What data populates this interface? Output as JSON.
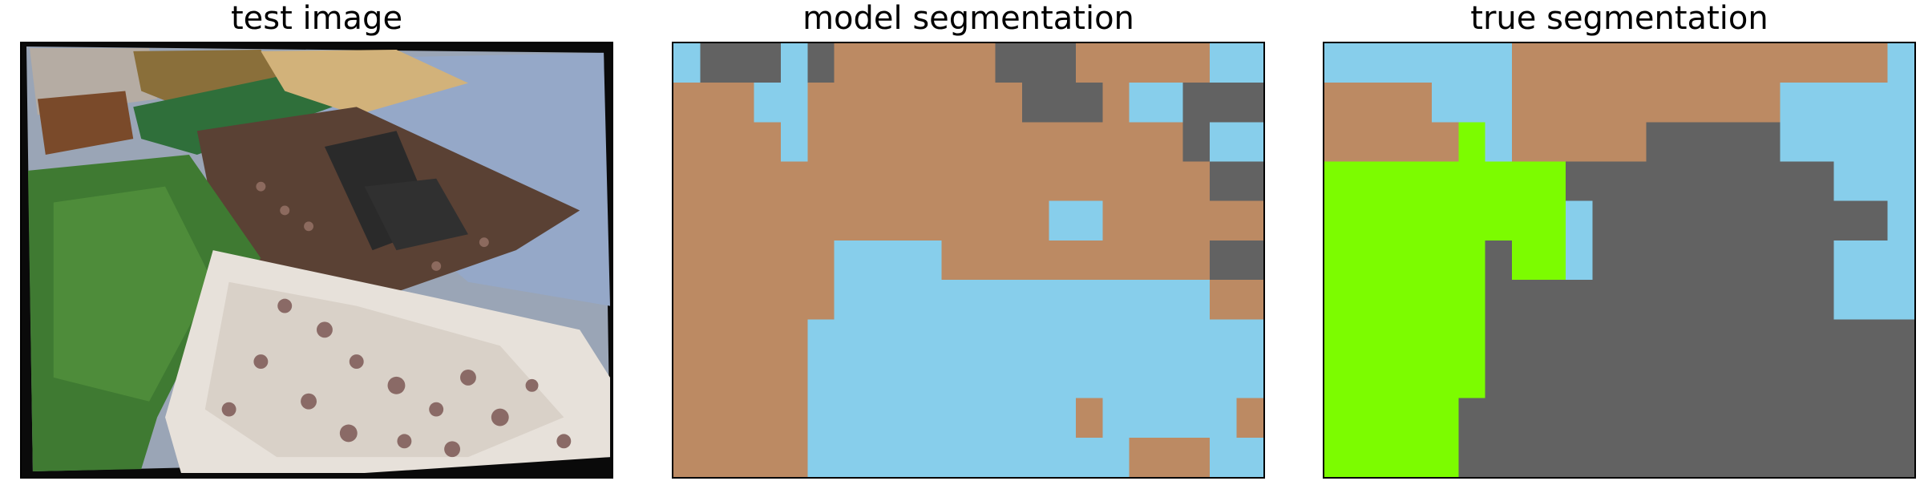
{
  "titles": {
    "test": "test image",
    "model": "model segmentation",
    "truth": "true segmentation"
  },
  "palette": {
    "tan": "#BC8A63",
    "gray": "#626262",
    "sky": "#87CEEB",
    "green": "#7CFC00"
  },
  "model_segmentation": {
    "rows": [
      "SGGGSGTTTTTTGGGTTTTTSS",
      "TTTSSTTTTTTTTGGGTSSGGG",
      "TTTTSTTTTTTTTTTTTTTGSS",
      "TTTTTTTTTTTTTTTTTTTTGG",
      "TTTTTTTTTTTTTTSSTTTTTT",
      "TTTTTTSSSSTTTTTTTTTTGG",
      "TTTTTTSSSSSSSSSSSSSSTT",
      "TTTTTSSSSSSSSSSSSSSSSS",
      "TTTTTSSSSSSSSSSSSSSSSS",
      "TTTTTSSSSSSSSSSTSSSSST",
      "TTTTTSSSSSSSSSSSSTTTSS"
    ]
  },
  "true_segmentation": {
    "rows": [
      "SSSSSSSTTTTTTTTTTTTTTS",
      "TTTTSSSTTTTTTTTTTSSSSS",
      "TTTTTLSTTTTTGGGGGSSSSS",
      "LLLLLLLLLGGGGGGGGGGSSS",
      "LLLLLLLLLSGGGGGGGGGGGS",
      "LLLLLLGLLSGGGGGGGGGSSS",
      "LLLLLLGGGGGGGGGGGGGSSS",
      "LLLLLLGGGGGGGGGGGGGGGG",
      "LLLLLLGGGGGGGGGGGGGGGG",
      "LLLLLGGGGGGGGGGGGGGGGG",
      "LLLLLGGGGGGGGGGGGGGGGG"
    ]
  }
}
